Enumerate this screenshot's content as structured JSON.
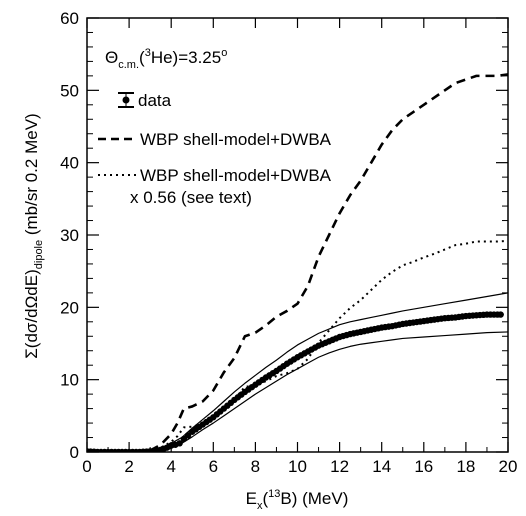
{
  "chart_data": {
    "type": "line",
    "title": "",
    "xlabel": "E_x(^13B) (MeV)",
    "ylabel": "Σ(dσ/dΩdE)_dipole (mb/sr 0.2 MeV)",
    "xlim": [
      0,
      20
    ],
    "ylim": [
      0,
      60
    ],
    "xticks": [
      0,
      2,
      4,
      6,
      8,
      10,
      12,
      14,
      16,
      18,
      20
    ],
    "yticks": [
      0,
      10,
      20,
      30,
      40,
      50,
      60
    ],
    "grid": false,
    "legend_position": "top-left",
    "annotation": {
      "prefix": "Θ",
      "sub": "c.m.",
      "mid": "(",
      "sup": "3",
      "suffix": "He)=3.25",
      "degree": "o"
    },
    "series": [
      {
        "name": "data",
        "style": "points-with-error-band",
        "color": "#000000",
        "x": [
          0.0,
          0.5,
          1.0,
          1.5,
          2.0,
          2.5,
          3.0,
          3.5,
          3.8,
          4.0,
          4.2,
          4.4,
          4.6,
          4.8,
          5.0,
          5.5,
          6.0,
          6.5,
          7.0,
          7.5,
          8.0,
          8.5,
          9.0,
          9.5,
          10.0,
          10.5,
          11.0,
          11.5,
          12.0,
          12.5,
          13.0,
          13.5,
          14.0,
          14.5,
          15.0,
          15.5,
          16.0,
          16.5,
          17.0,
          17.5,
          18.0,
          18.5,
          19.0,
          19.5,
          19.8
        ],
        "y": [
          0.1,
          0.0,
          0.0,
          0.0,
          0.0,
          0.0,
          0.1,
          0.3,
          0.6,
          0.9,
          1.0,
          1.2,
          1.8,
          2.3,
          2.8,
          3.8,
          4.8,
          6.0,
          7.2,
          8.3,
          9.3,
          10.3,
          11.2,
          12.2,
          13.1,
          13.9,
          14.7,
          15.3,
          15.9,
          16.3,
          16.6,
          16.9,
          17.2,
          17.4,
          17.7,
          17.9,
          18.1,
          18.3,
          18.5,
          18.6,
          18.8,
          18.9,
          19.0,
          19.0,
          19.0
        ]
      },
      {
        "name": "band-upper",
        "style": "solid",
        "color": "#000000",
        "x": [
          3.0,
          3.5,
          4.0,
          4.5,
          5.0,
          5.5,
          6.0,
          6.5,
          7.0,
          7.5,
          8.0,
          8.5,
          9.0,
          9.5,
          10.0,
          10.5,
          11.0,
          11.5,
          12.0,
          12.5,
          13.0,
          13.5,
          14.0,
          14.5,
          15.0,
          16.0,
          17.0,
          18.0,
          19.0,
          20.0
        ],
        "y": [
          0.2,
          0.5,
          1.2,
          2.0,
          3.3,
          4.5,
          5.7,
          7.0,
          8.3,
          9.5,
          10.6,
          11.7,
          12.7,
          13.8,
          14.8,
          15.6,
          16.4,
          17.0,
          17.6,
          18.0,
          18.3,
          18.6,
          18.9,
          19.2,
          19.5,
          20.0,
          20.5,
          21.0,
          21.5,
          22.0
        ]
      },
      {
        "name": "band-lower",
        "style": "solid",
        "color": "#000000",
        "x": [
          3.0,
          3.5,
          4.0,
          4.5,
          5.0,
          5.5,
          6.0,
          6.5,
          7.0,
          7.5,
          8.0,
          8.5,
          9.0,
          9.5,
          10.0,
          10.5,
          11.0,
          11.5,
          12.0,
          12.5,
          13.0,
          13.5,
          14.0,
          14.5,
          15.0,
          16.0,
          17.0,
          18.0,
          19.0,
          20.0
        ],
        "y": [
          0.0,
          0.1,
          0.5,
          1.2,
          2.1,
          3.1,
          4.0,
          5.0,
          6.0,
          7.0,
          8.0,
          8.9,
          9.8,
          10.7,
          11.5,
          12.3,
          13.1,
          13.7,
          14.2,
          14.6,
          14.9,
          15.1,
          15.3,
          15.5,
          15.7,
          15.9,
          16.1,
          16.3,
          16.5,
          16.6
        ]
      },
      {
        "name": "WBP shell-model+DWBA",
        "style": "dashed",
        "color": "#000000",
        "x": [
          3.0,
          3.5,
          4.0,
          4.3,
          4.6,
          5.0,
          5.5,
          6.0,
          6.5,
          7.0,
          7.5,
          8.0,
          8.5,
          9.0,
          9.5,
          10.0,
          10.5,
          11.0,
          11.5,
          12.0,
          12.5,
          13.0,
          13.5,
          14.0,
          14.5,
          15.0,
          15.5,
          16.0,
          16.5,
          17.0,
          17.5,
          18.0,
          18.5,
          19.0,
          19.5,
          20.0
        ],
        "y": [
          0.2,
          1.0,
          2.5,
          4.0,
          6.0,
          6.3,
          7.0,
          8.5,
          11.0,
          13.0,
          16.0,
          16.5,
          17.5,
          18.7,
          19.5,
          20.5,
          23.0,
          27.0,
          30.0,
          33.0,
          35.5,
          37.5,
          40.0,
          42.5,
          44.5,
          46.0,
          47.0,
          48.0,
          49.0,
          50.0,
          51.0,
          51.5,
          52.0,
          52.0,
          52.0,
          52.2
        ]
      },
      {
        "name": "WBP shell-model+DWBA x 0.56 (see text)",
        "style": "dotted",
        "color": "#000000",
        "x": [
          3.0,
          3.5,
          4.0,
          4.3,
          4.6,
          5.0,
          5.5,
          6.0,
          6.5,
          7.0,
          7.5,
          8.0,
          8.5,
          9.0,
          9.5,
          10.0,
          10.5,
          11.0,
          11.5,
          12.0,
          12.5,
          13.0,
          13.5,
          14.0,
          14.5,
          15.0,
          15.5,
          16.0,
          16.5,
          17.0,
          17.5,
          18.0,
          18.5,
          19.0,
          19.5,
          20.0
        ],
        "y": [
          0.1,
          0.6,
          1.4,
          2.2,
          3.4,
          3.5,
          3.9,
          4.8,
          6.2,
          7.3,
          9.0,
          9.2,
          9.8,
          10.5,
          10.9,
          11.5,
          12.9,
          15.1,
          16.8,
          18.5,
          19.9,
          21.0,
          22.4,
          23.8,
          24.9,
          25.8,
          26.3,
          26.9,
          27.4,
          28.0,
          28.6,
          28.8,
          29.1,
          29.1,
          29.1,
          29.2
        ]
      }
    ],
    "legend": [
      {
        "label": "data",
        "style": "point-errorbar"
      },
      {
        "label": "WBP shell-model+DWBA",
        "style": "dashed"
      },
      {
        "label": "WBP shell-model+DWBA",
        "label2": "x 0.56 (see text)",
        "style": "dotted"
      }
    ]
  }
}
